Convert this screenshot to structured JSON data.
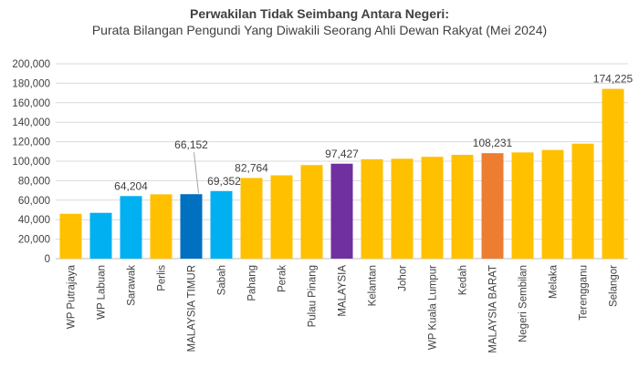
{
  "chart_data": {
    "type": "bar",
    "title": "Perwakilan Tidak Seimbang Antara Negeri:",
    "subtitle": "Purata Bilangan Pengundi Yang Diwakili Seorang Ahli Dewan Rakyat (Mei 2024)",
    "xlabel": "",
    "ylabel": "",
    "ylim": [
      0,
      200000
    ],
    "yticks": [
      0,
      20000,
      40000,
      60000,
      80000,
      100000,
      120000,
      140000,
      160000,
      180000,
      200000
    ],
    "ytick_labels": [
      "0",
      "20,000",
      "40,000",
      "60,000",
      "80,000",
      "100,000",
      "120,000",
      "140,000",
      "160,000",
      "180,000",
      "200,000"
    ],
    "grid": true,
    "legend": "none",
    "categories": [
      "WP Putrajaya",
      "WP Labuan",
      "Sarawak",
      "Perlis",
      "MALAYSIA TIMUR",
      "Sabah",
      "Pahang",
      "Perak",
      "Pulau Pinang",
      "MALAYSIA",
      "Kelantan",
      "Johor",
      "WP Kuala Lumpur",
      "Kedah",
      "MALAYSIA BARAT",
      "Negeri Sembilan",
      "Melaka",
      "Terengganu",
      "Selangor"
    ],
    "values": [
      46000,
      47000,
      64204,
      66000,
      66152,
      69352,
      82764,
      85500,
      96000,
      97427,
      102000,
      102500,
      104500,
      106500,
      108231,
      109000,
      111500,
      118000,
      174225
    ],
    "colors": [
      "#FFC000",
      "#00B0F0",
      "#00B0F0",
      "#FFC000",
      "#0070C0",
      "#00B0F0",
      "#FFC000",
      "#FFC000",
      "#FFC000",
      "#7030A0",
      "#FFC000",
      "#FFC000",
      "#FFC000",
      "#FFC000",
      "#ED7D31",
      "#FFC000",
      "#FFC000",
      "#FFC000",
      "#FFC000"
    ],
    "data_labels": [
      {
        "category": "Sarawak",
        "text": "64,204"
      },
      {
        "category": "MALAYSIA TIMUR",
        "text": "66,152"
      },
      {
        "category": "Sabah",
        "text": "69,352"
      },
      {
        "category": "Pahang",
        "text": "82,764"
      },
      {
        "category": "MALAYSIA",
        "text": "97,427"
      },
      {
        "category": "MALAYSIA BARAT",
        "text": "108,231"
      },
      {
        "category": "Selangor",
        "text": "174,225"
      }
    ]
  }
}
